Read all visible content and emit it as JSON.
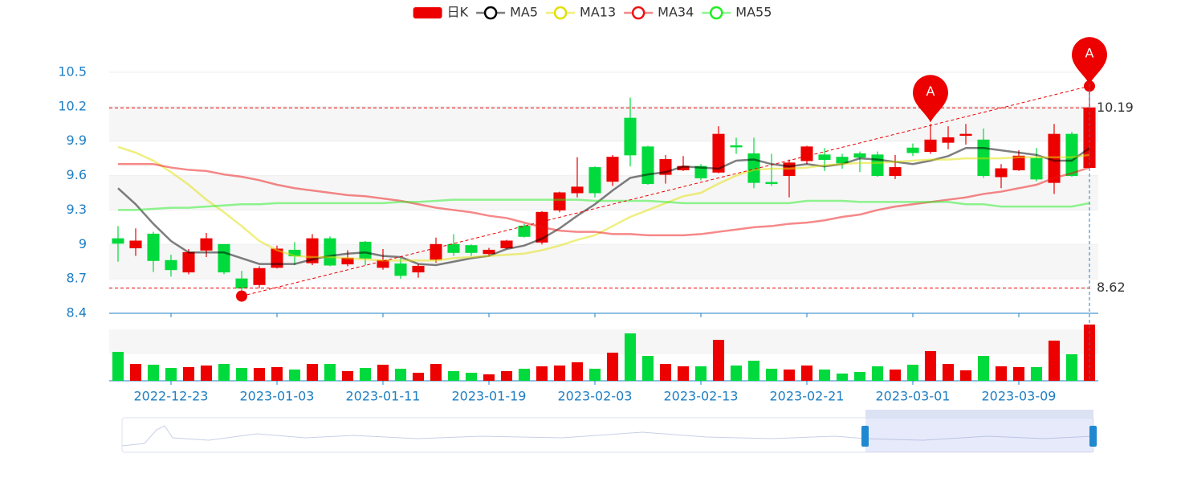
{
  "chart_data": {
    "type": "candlestick",
    "categories": [
      null,
      null,
      null,
      "2022-12-23",
      null,
      null,
      null,
      null,
      null,
      "2023-01-03",
      null,
      null,
      null,
      null,
      null,
      "2023-01-11",
      null,
      null,
      null,
      null,
      null,
      "2023-01-19",
      null,
      null,
      null,
      null,
      null,
      "2023-02-03",
      null,
      null,
      null,
      null,
      null,
      "2023-02-13",
      null,
      null,
      null,
      null,
      null,
      "2023-02-21",
      null,
      null,
      null,
      null,
      null,
      "2023-03-01",
      null,
      null,
      null,
      null,
      null,
      "2023-03-09",
      null,
      null,
      null,
      null
    ],
    "candles": {
      "name": "日K",
      "up_color": "#ec0000",
      "down_color": "#00da3c",
      "open": [
        9.05,
        8.97,
        9.09,
        8.86,
        8.76,
        8.95,
        9.0,
        8.7,
        8.65,
        8.8,
        8.95,
        8.84,
        9.05,
        8.83,
        9.02,
        8.8,
        8.83,
        8.76,
        8.87,
        9.0,
        8.99,
        8.92,
        8.97,
        9.16,
        9.02,
        9.3,
        9.45,
        9.67,
        9.55,
        10.1,
        9.85,
        9.61,
        9.65,
        9.68,
        9.63,
        9.86,
        9.79,
        9.54,
        9.6,
        9.73,
        9.78,
        9.76,
        9.79,
        9.78,
        9.6,
        9.84,
        9.81,
        9.89,
        9.95,
        9.91,
        9.59,
        9.65,
        9.75,
        9.54,
        9.96,
        9.67
      ],
      "close": [
        9.01,
        9.03,
        8.86,
        8.78,
        8.93,
        9.05,
        8.76,
        8.62,
        8.79,
        8.96,
        8.9,
        9.05,
        8.82,
        8.88,
        8.88,
        8.86,
        8.73,
        8.81,
        9.0,
        8.93,
        8.93,
        8.95,
        9.03,
        9.07,
        9.28,
        9.45,
        9.5,
        9.45,
        9.76,
        9.78,
        9.53,
        9.74,
        9.68,
        9.58,
        9.96,
        9.85,
        9.54,
        9.53,
        9.71,
        9.85,
        9.74,
        9.71,
        9.76,
        9.6,
        9.67,
        9.8,
        9.91,
        9.93,
        9.96,
        9.6,
        9.66,
        9.77,
        9.57,
        9.96,
        9.6,
        10.19
      ],
      "high": [
        9.16,
        9.14,
        9.11,
        8.91,
        8.96,
        9.1,
        9.0,
        8.77,
        8.81,
        8.99,
        9.02,
        9.09,
        9.07,
        8.95,
        9.03,
        8.96,
        8.88,
        8.83,
        9.06,
        9.09,
        9.0,
        8.97,
        9.04,
        9.18,
        9.29,
        9.46,
        9.76,
        9.68,
        9.78,
        10.28,
        9.86,
        9.78,
        9.77,
        9.7,
        10.03,
        9.93,
        9.93,
        9.79,
        9.74,
        9.86,
        9.84,
        9.79,
        9.81,
        9.81,
        9.78,
        9.88,
        10.05,
        10.03,
        10.05,
        10.01,
        9.7,
        9.82,
        9.84,
        10.05,
        9.98,
        10.38
      ],
      "low": [
        8.85,
        8.9,
        8.76,
        8.72,
        8.74,
        8.89,
        8.74,
        8.55,
        8.62,
        8.79,
        8.82,
        8.82,
        8.81,
        8.81,
        8.82,
        8.78,
        8.7,
        8.71,
        8.84,
        8.9,
        8.9,
        8.9,
        8.96,
        9.06,
        9.0,
        9.28,
        9.41,
        9.41,
        9.51,
        9.68,
        9.52,
        9.53,
        9.64,
        9.56,
        9.62,
        9.79,
        9.49,
        9.51,
        9.41,
        9.7,
        9.64,
        9.66,
        9.63,
        9.59,
        9.57,
        9.77,
        9.79,
        9.83,
        9.87,
        9.58,
        9.49,
        9.64,
        9.55,
        9.44,
        9.59,
        9.67
      ]
    },
    "series": [
      {
        "name": "MA5",
        "color": "#000000",
        "values": [
          9.49,
          9.35,
          9.18,
          9.03,
          8.93,
          8.93,
          8.93,
          8.88,
          8.83,
          8.83,
          8.83,
          8.87,
          8.9,
          8.92,
          8.93,
          8.9,
          8.89,
          8.83,
          8.82,
          8.85,
          8.88,
          8.9,
          8.96,
          8.99,
          9.05,
          9.14,
          9.25,
          9.35,
          9.47,
          9.58,
          9.61,
          9.63,
          9.68,
          9.67,
          9.66,
          9.73,
          9.74,
          9.7,
          9.68,
          9.7,
          9.68,
          9.7,
          9.75,
          9.74,
          9.72,
          9.7,
          9.73,
          9.77,
          9.84,
          9.84,
          9.82,
          9.8,
          9.78,
          9.73,
          9.73,
          9.84
        ]
      },
      {
        "name": "MA13",
        "color": "#e0e000",
        "values": [
          9.85,
          9.8,
          9.73,
          9.63,
          9.52,
          9.39,
          9.28,
          9.16,
          9.03,
          8.95,
          8.9,
          8.89,
          8.89,
          8.88,
          8.87,
          8.86,
          8.86,
          8.86,
          8.86,
          8.88,
          8.89,
          8.9,
          8.91,
          8.92,
          8.95,
          8.99,
          9.04,
          9.08,
          9.16,
          9.24,
          9.3,
          9.36,
          9.42,
          9.45,
          9.53,
          9.6,
          9.65,
          9.66,
          9.66,
          9.67,
          9.69,
          9.7,
          9.71,
          9.71,
          9.72,
          9.73,
          9.74,
          9.74,
          9.75,
          9.75,
          9.75,
          9.76,
          9.76,
          9.76,
          9.76,
          9.78
        ]
      },
      {
        "name": "MA34",
        "color": "#ee1111",
        "values": [
          9.7,
          9.7,
          9.7,
          9.67,
          9.65,
          9.64,
          9.61,
          9.59,
          9.56,
          9.52,
          9.49,
          9.47,
          9.45,
          9.43,
          9.42,
          9.4,
          9.38,
          9.35,
          9.32,
          9.3,
          9.28,
          9.25,
          9.23,
          9.19,
          9.15,
          9.12,
          9.11,
          9.11,
          9.09,
          9.09,
          9.08,
          9.08,
          9.08,
          9.09,
          9.11,
          9.13,
          9.15,
          9.16,
          9.18,
          9.19,
          9.21,
          9.24,
          9.26,
          9.3,
          9.33,
          9.35,
          9.37,
          9.39,
          9.41,
          9.44,
          9.46,
          9.49,
          9.52,
          9.58,
          9.62,
          9.67
        ]
      },
      {
        "name": "MA55",
        "color": "#22ee22",
        "values": [
          9.3,
          9.3,
          9.31,
          9.32,
          9.32,
          9.33,
          9.34,
          9.35,
          9.35,
          9.36,
          9.36,
          9.36,
          9.36,
          9.36,
          9.36,
          9.36,
          9.37,
          9.37,
          9.38,
          9.39,
          9.39,
          9.39,
          9.39,
          9.39,
          9.39,
          9.39,
          9.39,
          9.38,
          9.38,
          9.38,
          9.38,
          9.37,
          9.36,
          9.36,
          9.36,
          9.36,
          9.36,
          9.36,
          9.36,
          9.38,
          9.38,
          9.38,
          9.37,
          9.37,
          9.37,
          9.37,
          9.37,
          9.37,
          9.35,
          9.35,
          9.33,
          9.33,
          9.33,
          9.33,
          9.33,
          9.36
        ]
      }
    ],
    "ylim": [
      8.4,
      10.5
    ],
    "yticks": [
      8.4,
      8.7,
      9,
      9.3,
      9.6,
      9.9,
      10.2,
      10.5
    ],
    "split_area": true,
    "legend": "top",
    "volume": {
      "values": [
        36,
        21,
        20,
        16,
        17,
        19,
        21,
        16,
        16,
        17,
        14,
        21,
        21,
        12,
        16,
        20,
        15,
        10,
        21,
        12,
        10,
        8,
        12,
        15,
        18,
        19,
        23,
        15,
        35,
        59,
        31,
        21,
        18,
        18,
        51,
        19,
        25,
        15,
        14,
        19,
        14,
        9,
        11,
        18,
        14,
        20,
        37,
        21,
        13,
        31,
        18,
        17,
        17,
        50,
        33,
        70
      ],
      "ylim": [
        0,
        70
      ]
    },
    "mark_lines": [
      10.19,
      8.62
    ],
    "mark_points": [
      {
        "label": "A",
        "index": 46,
        "value": 10.05
      },
      {
        "label": "A",
        "index": 55,
        "value": 10.38
      }
    ],
    "trend_line": [
      {
        "index": 7,
        "value": 8.55
      },
      {
        "index": 55,
        "value": 10.38
      }
    ]
  }
}
